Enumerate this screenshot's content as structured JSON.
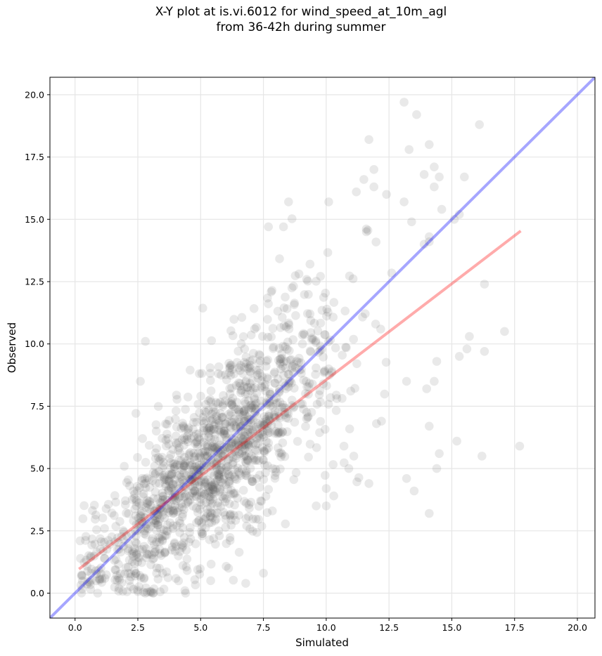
{
  "chart_data": {
    "type": "scatter",
    "title_line1": "X-Y plot at is.vi.6012 for wind_speed_at_10m_agl",
    "title_line2": "from 36-42h during summer",
    "xlabel": "Simulated",
    "ylabel": "Observed",
    "xlim": [
      -1.0,
      20.7
    ],
    "ylim": [
      -1.0,
      20.7
    ],
    "xticks": [
      0.0,
      2.5,
      5.0,
      7.5,
      10.0,
      12.5,
      15.0,
      17.5,
      20.0
    ],
    "yticks": [
      0.0,
      2.5,
      5.0,
      7.5,
      10.0,
      12.5,
      15.0,
      17.5,
      20.0
    ],
    "grid": true,
    "marker_color": "#555555",
    "one_to_one_line": {
      "color": "#0000ff",
      "x": [
        -1.0,
        20.7
      ],
      "y": [
        -1.0,
        20.7
      ]
    },
    "fit_line": {
      "color": "#ff0000",
      "x": [
        0.2,
        17.7
      ],
      "y": [
        1.0,
        14.5
      ]
    },
    "outlier_points": [
      [
        13.1,
        19.7
      ],
      [
        13.6,
        19.2
      ],
      [
        16.1,
        18.8
      ],
      [
        11.7,
        18.2
      ],
      [
        14.1,
        18.0
      ],
      [
        13.3,
        17.8
      ],
      [
        14.3,
        17.1
      ],
      [
        11.9,
        17.0
      ],
      [
        13.9,
        16.8
      ],
      [
        14.5,
        16.7
      ],
      [
        15.5,
        16.7
      ],
      [
        11.5,
        16.6
      ],
      [
        14.3,
        16.3
      ],
      [
        11.9,
        16.3
      ],
      [
        11.2,
        16.1
      ],
      [
        12.4,
        16.0
      ],
      [
        8.5,
        15.7
      ],
      [
        10.1,
        15.7
      ],
      [
        13.1,
        15.7
      ],
      [
        14.6,
        15.4
      ],
      [
        15.3,
        15.2
      ],
      [
        15.1,
        15.0
      ],
      [
        13.4,
        14.9
      ],
      [
        7.7,
        14.7
      ],
      [
        8.3,
        14.7
      ],
      [
        11.6,
        14.5
      ],
      [
        14.1,
        14.3
      ],
      [
        14.1,
        14.1
      ],
      [
        13.9,
        14.0
      ],
      [
        16.3,
        12.4
      ],
      [
        17.1,
        10.5
      ],
      [
        15.7,
        10.3
      ],
      [
        15.6,
        9.8
      ],
      [
        16.3,
        9.7
      ],
      [
        15.3,
        9.5
      ],
      [
        14.4,
        9.3
      ],
      [
        13.2,
        8.5
      ],
      [
        14.3,
        8.5
      ],
      [
        14.0,
        8.2
      ],
      [
        14.1,
        6.7
      ],
      [
        15.2,
        6.1
      ],
      [
        14.5,
        5.6
      ],
      [
        16.2,
        5.5
      ],
      [
        14.4,
        5.0
      ],
      [
        13.2,
        4.6
      ],
      [
        13.5,
        4.1
      ],
      [
        14.1,
        3.2
      ],
      [
        17.7,
        5.9
      ],
      [
        11.7,
        4.4
      ],
      [
        10.3,
        3.9
      ],
      [
        10.0,
        4.2
      ],
      [
        9.6,
        3.5
      ],
      [
        10.0,
        3.5
      ],
      [
        12.2,
        6.9
      ],
      [
        12.0,
        6.8
      ],
      [
        11.1,
        5.5
      ],
      [
        10.9,
        5.0
      ],
      [
        2.8,
        10.1
      ],
      [
        2.6,
        8.5
      ],
      [
        3.1,
        0.0
      ],
      [
        4.4,
        0.0
      ],
      [
        2.8,
        0.0
      ],
      [
        0.2,
        2.1
      ],
      [
        0.9,
        0.0
      ],
      [
        7.5,
        0.8
      ],
      [
        5.4,
        0.5
      ]
    ]
  }
}
